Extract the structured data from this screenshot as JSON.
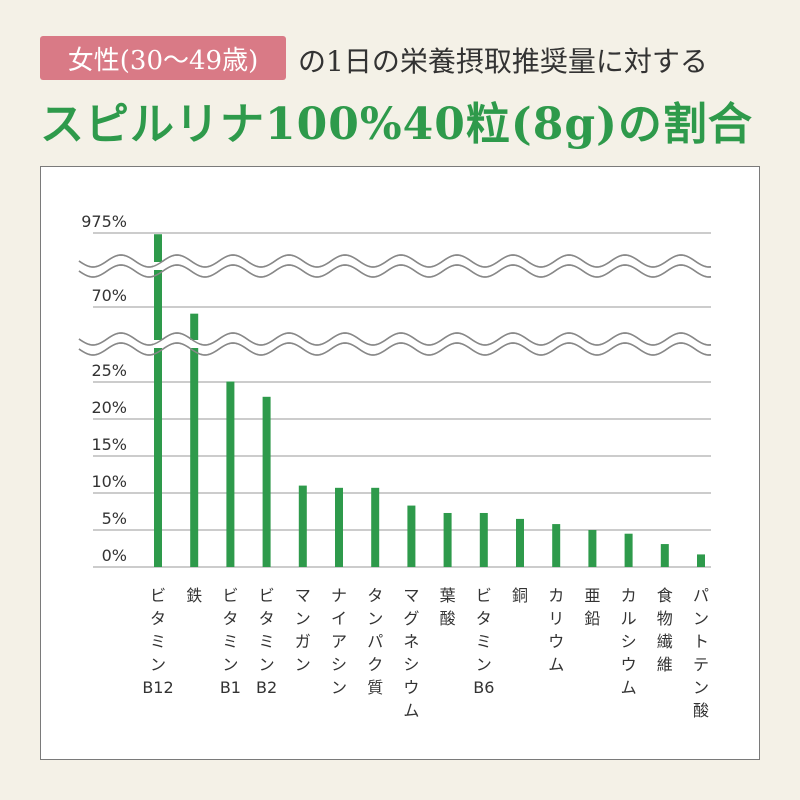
{
  "header": {
    "badge_text": "女性(30〜49歳)",
    "rest_text": "の1日の栄養摂取推奨量に対する",
    "headline": "スピルリナ100%40粒(8g)の割合"
  },
  "colors": {
    "bar": "#2e9a4b",
    "badge": "#d97a86",
    "headline": "#2e9a4b",
    "grid": "#999999"
  },
  "chart_data": {
    "type": "bar",
    "title": "",
    "xlabel": "",
    "ylabel": "",
    "axis_breaks": [
      [
        25,
        70
      ],
      [
        70,
        975
      ]
    ],
    "y_ticks": [
      "0%",
      "5%",
      "10%",
      "15%",
      "20%",
      "25%",
      "70%",
      "975%"
    ],
    "y_tick_values": [
      0,
      5,
      10,
      15,
      20,
      25,
      70,
      975
    ],
    "categories": [
      "ビタミンB12",
      "鉄",
      "ビタミンB1",
      "ビタミンB2",
      "マンガン",
      "ナイアシン",
      "タンパク質",
      "マグネシウム",
      "葉酸",
      "ビタミンB6",
      "銅",
      "カリウム",
      "亜鉛",
      "カルシウム",
      "食物繊維",
      "パントテン酸"
    ],
    "category_labels": [
      [
        "ビ",
        "タ",
        "ミ",
        "ン",
        "B12"
      ],
      [
        "鉄"
      ],
      [
        "ビ",
        "タ",
        "ミ",
        "ン",
        "B1"
      ],
      [
        "ビ",
        "タ",
        "ミ",
        "ン",
        "B2"
      ],
      [
        "マ",
        "ン",
        "ガ",
        "ン"
      ],
      [
        "ナ",
        "イ",
        "ア",
        "シ",
        "ン"
      ],
      [
        "タ",
        "ン",
        "パ",
        "ク",
        "質"
      ],
      [
        "マ",
        "グ",
        "ネ",
        "シ",
        "ウ",
        "ム"
      ],
      [
        "葉",
        "酸"
      ],
      [
        "ビ",
        "タ",
        "ミ",
        "ン",
        "B6"
      ],
      [
        "銅"
      ],
      [
        "カ",
        "リ",
        "ウ",
        "ム"
      ],
      [
        "亜",
        "鉛"
      ],
      [
        "カ",
        "ル",
        "シ",
        "ウ",
        "ム"
      ],
      [
        "食",
        "物",
        "繊",
        "維"
      ],
      [
        "パ",
        "ン",
        "ト",
        "テ",
        "ン",
        "酸"
      ]
    ],
    "values": [
      960,
      66,
      25.3,
      23,
      11,
      10.7,
      10.7,
      8.3,
      7.3,
      7.3,
      6.5,
      5.8,
      5,
      4.5,
      3.1,
      1.7
    ],
    "ylim": [
      0,
      975
    ]
  }
}
